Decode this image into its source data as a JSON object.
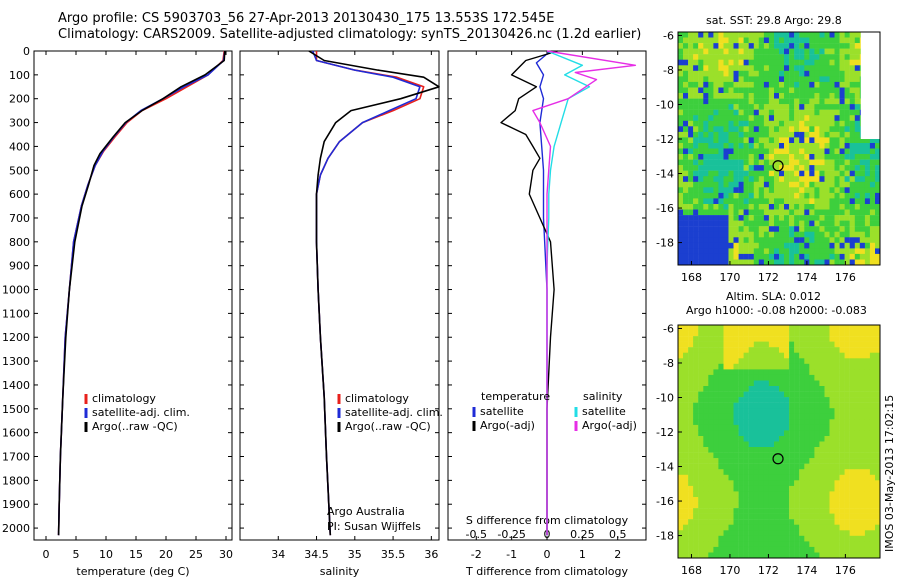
{
  "header": {
    "title_line1": "Argo profile: CS 5903703_56 27-Apr-2013 20130430_175 13.553S 172.545E",
    "title_line2": "Climatology: CARS2009. Satellite-adjusted climatology: synTS_20130426.nc (1.2d earlier)"
  },
  "map_sst": {
    "title": "sat. SST: 29.8 Argo: 29.8"
  },
  "map_sla": {
    "title_line1": "Altim. SLA: 0.012",
    "title_line2": "Argo h1000: -0.08 h2000: -0.083"
  },
  "side_credit": "IMOS 03-May-2013 17:02:15",
  "colors": {
    "climatology": "#e8211c",
    "satellite": "#1f2bd6",
    "argo": "#000000",
    "satellite_s": "#22dde6",
    "argo_s": "#e62ee6"
  },
  "chart_data": [
    {
      "type": "line",
      "xlabel": "temperature (deg C)",
      "ylabel": "",
      "xlim": [
        -2,
        31
      ],
      "ylim": [
        2050,
        0
      ],
      "xticks": [
        0,
        5,
        10,
        15,
        20,
        25,
        30
      ],
      "yticks": [
        0,
        100,
        200,
        300,
        400,
        500,
        600,
        700,
        800,
        900,
        1000,
        1100,
        1200,
        1300,
        1400,
        1500,
        1600,
        1700,
        1800,
        1900,
        2000
      ],
      "legend": "lower-middle",
      "series": [
        {
          "name": "climatology",
          "color": "#e8211c",
          "x": [
            29.7,
            29.5,
            27,
            23.5,
            20,
            16,
            13.5,
            11.5,
            9.6,
            8.2,
            7.0,
            5.9,
            4.6,
            3.9,
            3.2,
            2.8,
            2.4,
            2.2,
            2.1
          ],
          "y": [
            0,
            40,
            100,
            150,
            200,
            250,
            300,
            360,
            420,
            480,
            560,
            650,
            800,
            1000,
            1200,
            1450,
            1700,
            1900,
            2030
          ]
        },
        {
          "name": "satellite-adj. clim.",
          "color": "#1f2bd6",
          "x": [
            29.8,
            29.6,
            27,
            23,
            19.5,
            15.8,
            13.3,
            11.3,
            9.5,
            8.2,
            7.0,
            5.9,
            4.6,
            3.9,
            3.2,
            2.8,
            2.4,
            2.2,
            2.1
          ],
          "y": [
            0,
            40,
            100,
            150,
            200,
            250,
            300,
            360,
            420,
            480,
            560,
            650,
            800,
            1000,
            1200,
            1450,
            1700,
            1900,
            2030
          ]
        },
        {
          "name": "Argo(..raw -QC)",
          "color": "#000000",
          "x": [
            29.8,
            29.7,
            26.5,
            22.5,
            19.5,
            16,
            13.2,
            11.2,
            9.0,
            8.0,
            7.1,
            6.0,
            4.8,
            3.9,
            3.3,
            2.8,
            2.4,
            2.2,
            2.1
          ],
          "y": [
            0,
            40,
            100,
            150,
            200,
            250,
            300,
            360,
            430,
            480,
            560,
            650,
            800,
            1000,
            1200,
            1450,
            1700,
            1900,
            2030
          ]
        }
      ]
    },
    {
      "type": "line",
      "xlabel": "salinity",
      "ylabel": "",
      "xlim": [
        33.5,
        36.1
      ],
      "ylim": [
        2050,
        0
      ],
      "xticks": [
        34,
        34.5,
        35,
        35.5,
        36
      ],
      "legend": "lower-right",
      "annotation_line1": "Argo Australia",
      "annotation_line2": "PI: Susan Wijffels",
      "series": [
        {
          "name": "climatology",
          "color": "#e8211c",
          "x": [
            34.5,
            34.5,
            35,
            35.55,
            35.9,
            35.85,
            35.5,
            35.1,
            34.8,
            34.65,
            34.55,
            34.5,
            34.5,
            34.52,
            34.55,
            34.6,
            34.63,
            34.66,
            34.68
          ],
          "y": [
            0,
            40,
            80,
            110,
            150,
            200,
            250,
            300,
            380,
            450,
            520,
            600,
            800,
            1000,
            1200,
            1450,
            1700,
            1900,
            2030
          ]
        },
        {
          "name": "satellite-adj. clim.",
          "color": "#1f2bd6",
          "x": [
            34.45,
            34.5,
            35,
            35.5,
            35.85,
            35.8,
            35.45,
            35.1,
            34.8,
            34.65,
            34.55,
            34.5,
            34.5,
            34.52,
            34.55,
            34.6,
            34.63,
            34.66,
            34.68
          ],
          "y": [
            0,
            40,
            80,
            110,
            150,
            200,
            250,
            300,
            380,
            450,
            520,
            600,
            800,
            1000,
            1200,
            1450,
            1700,
            1900,
            2030
          ]
        },
        {
          "name": "Argo(..raw -QC)",
          "color": "#000000",
          "x": [
            34.4,
            34.6,
            35.3,
            35.9,
            36.1,
            35.6,
            34.95,
            34.75,
            34.6,
            34.55,
            34.52,
            34.5,
            34.5,
            34.52,
            34.55,
            34.6,
            34.63,
            34.66,
            34.68
          ],
          "y": [
            0,
            40,
            80,
            110,
            150,
            200,
            250,
            300,
            380,
            450,
            520,
            600,
            800,
            1000,
            1200,
            1450,
            1700,
            1900,
            2030
          ]
        }
      ]
    },
    {
      "type": "line",
      "xlabel": "T difference from climatology",
      "xlabel_top": "S difference from climatology",
      "xlim": [
        -2.8,
        2.8
      ],
      "ylim": [
        2050,
        0
      ],
      "xticks": [
        -2,
        -1,
        0,
        1,
        2
      ],
      "xticks_s": [
        -0.5,
        -0.25,
        0,
        0.25,
        0.5
      ],
      "xticks_s_labels": [
        "-0.5",
        "-0.25",
        "0",
        "0.25",
        "0.5"
      ],
      "legend_temperature": "temperature",
      "legend_salinity": "salinity",
      "series": [
        {
          "name": "satellite",
          "group": "temperature",
          "color": "#1f2bd6",
          "x": [
            0.1,
            -0.3,
            -0.1,
            -0.2,
            -0.1,
            -0.2,
            -0.15,
            -0.1,
            -0.1,
            0,
            0,
            0
          ],
          "y": [
            0,
            50,
            100,
            150,
            200,
            300,
            400,
            500,
            700,
            1000,
            1500,
            2030
          ]
        },
        {
          "name": "Argo(-adj)",
          "group": "temperature",
          "color": "#000000",
          "x": [
            0.3,
            -0.6,
            -1.0,
            -0.3,
            -0.8,
            -0.9,
            -1.3,
            -0.6,
            -0.4,
            -0.2,
            -0.4,
            -0.5,
            -0.2,
            0.1,
            0.2,
            0.1,
            0,
            0,
            0
          ],
          "y": [
            0,
            40,
            100,
            150,
            200,
            250,
            300,
            350,
            400,
            450,
            500,
            600,
            700,
            800,
            1000,
            1200,
            1500,
            1800,
            2030
          ]
        },
        {
          "name": "satellite",
          "group": "salinity",
          "color": "#22dde6",
          "x": [
            0,
            1.0,
            0.5,
            1.2,
            0.6,
            0.4,
            0.2,
            0.1,
            0.05,
            0.05,
            0,
            0,
            0,
            0
          ],
          "y": [
            0,
            60,
            100,
            150,
            200,
            300,
            400,
            500,
            600,
            700,
            900,
            1200,
            1600,
            2030
          ]
        },
        {
          "name": "Argo(-adj)",
          "group": "salinity",
          "color": "#e62ee6",
          "x": [
            0,
            2.5,
            0.8,
            1.4,
            0.6,
            -0.4,
            -0.2,
            0.1,
            0,
            0,
            0
          ],
          "y": [
            0,
            60,
            90,
            120,
            200,
            250,
            300,
            400,
            600,
            1000,
            2030
          ]
        }
      ]
    },
    {
      "type": "heatmap",
      "title": "sat. SST: 29.8 Argo: 29.8",
      "xlim": [
        167.3,
        177.8
      ],
      "ylim": [
        -19.3,
        -5.8
      ],
      "xticks": [
        168,
        170,
        172,
        174,
        176
      ],
      "yticks": [
        -6,
        -8,
        -10,
        -12,
        -14,
        -16,
        -18
      ],
      "marker": [
        172.5,
        -13.55
      ]
    },
    {
      "type": "heatmap",
      "title": "Altim. SLA: 0.012",
      "xlim": [
        167.3,
        177.8
      ],
      "ylim": [
        -19.3,
        -5.8
      ],
      "xticks": [
        168,
        170,
        172,
        174,
        176
      ],
      "yticks": [
        -6,
        -8,
        -10,
        -12,
        -14,
        -16,
        -18
      ],
      "marker": [
        172.5,
        -13.55
      ]
    }
  ]
}
